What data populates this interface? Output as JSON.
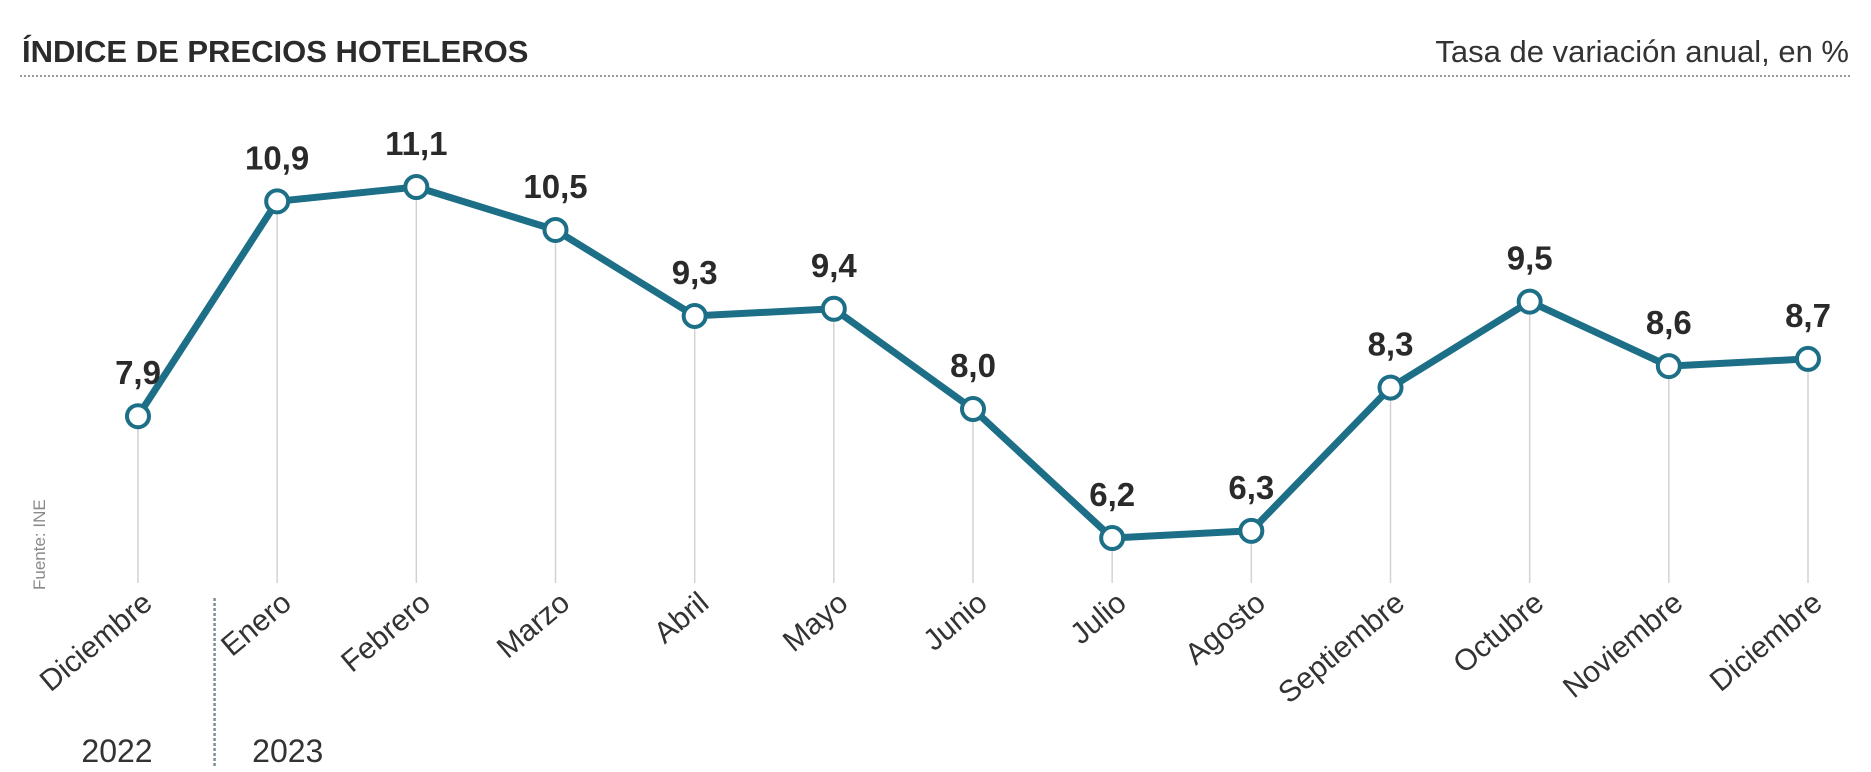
{
  "chart_data": {
    "type": "line",
    "title": "ÍNDICE DE PRECIOS HOTELEROS",
    "subtitle": "Tasa de variación anual, en %",
    "source": "Fuente: INE",
    "categories": [
      "Diciembre",
      "Enero",
      "Febrero",
      "Marzo",
      "Abril",
      "Mayo",
      "Junio",
      "Julio",
      "Agosto",
      "Septiembre",
      "Octubre",
      "Noviembre",
      "Diciembre"
    ],
    "years": [
      {
        "label": "2022",
        "span": [
          0,
          0
        ]
      },
      {
        "label": "2023",
        "span": [
          1,
          12
        ]
      }
    ],
    "series": [
      {
        "values": [
          7.9,
          10.9,
          11.1,
          10.5,
          9.3,
          9.4,
          8.0,
          6.2,
          6.3,
          8.3,
          9.5,
          8.6,
          8.7
        ],
        "labels": [
          "7,9",
          "10,9",
          "11,1",
          "10,5",
          "9,3",
          "9,4",
          "8,0",
          "6,2",
          "6,3",
          "8,3",
          "9,5",
          "8,6",
          "8,7"
        ]
      }
    ],
    "colors": {
      "line": "#1c6f87",
      "marker_fill": "#ffffff",
      "gridline": "#d2d2d2",
      "divider": "#7f8f99",
      "title_rule": "#9a9a9a"
    },
    "grid": false,
    "legend": "none"
  }
}
